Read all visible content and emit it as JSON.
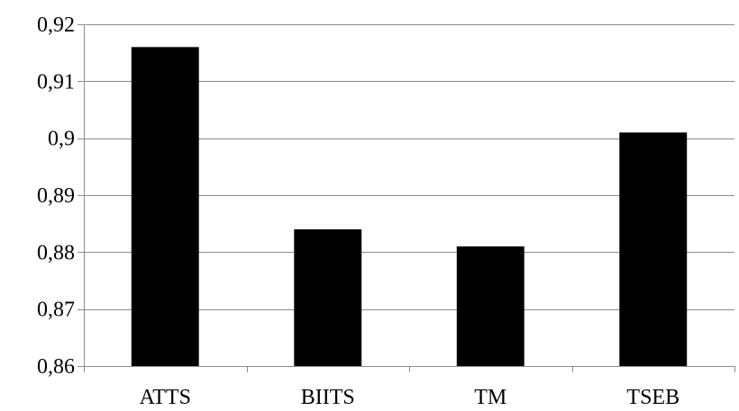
{
  "chart_data": {
    "type": "bar",
    "categories": [
      "ATTS",
      "BIITS",
      "TM",
      "TSEB"
    ],
    "values": [
      0.916,
      0.884,
      0.881,
      0.901
    ],
    "ylim": [
      0.86,
      0.92
    ],
    "yticks": [
      0.86,
      0.87,
      0.88,
      0.89,
      0.9,
      0.91,
      0.92
    ],
    "ytick_labels": [
      "0,86",
      "0,87",
      "0,88",
      "0,89",
      "0,9",
      "0,91",
      "0,92"
    ],
    "grid": true,
    "legend": false,
    "title": "",
    "xlabel": "",
    "ylabel": ""
  },
  "colors": {
    "bar": "#000000",
    "grid": "#8c8c8c",
    "axis": "#8c8c8c"
  }
}
